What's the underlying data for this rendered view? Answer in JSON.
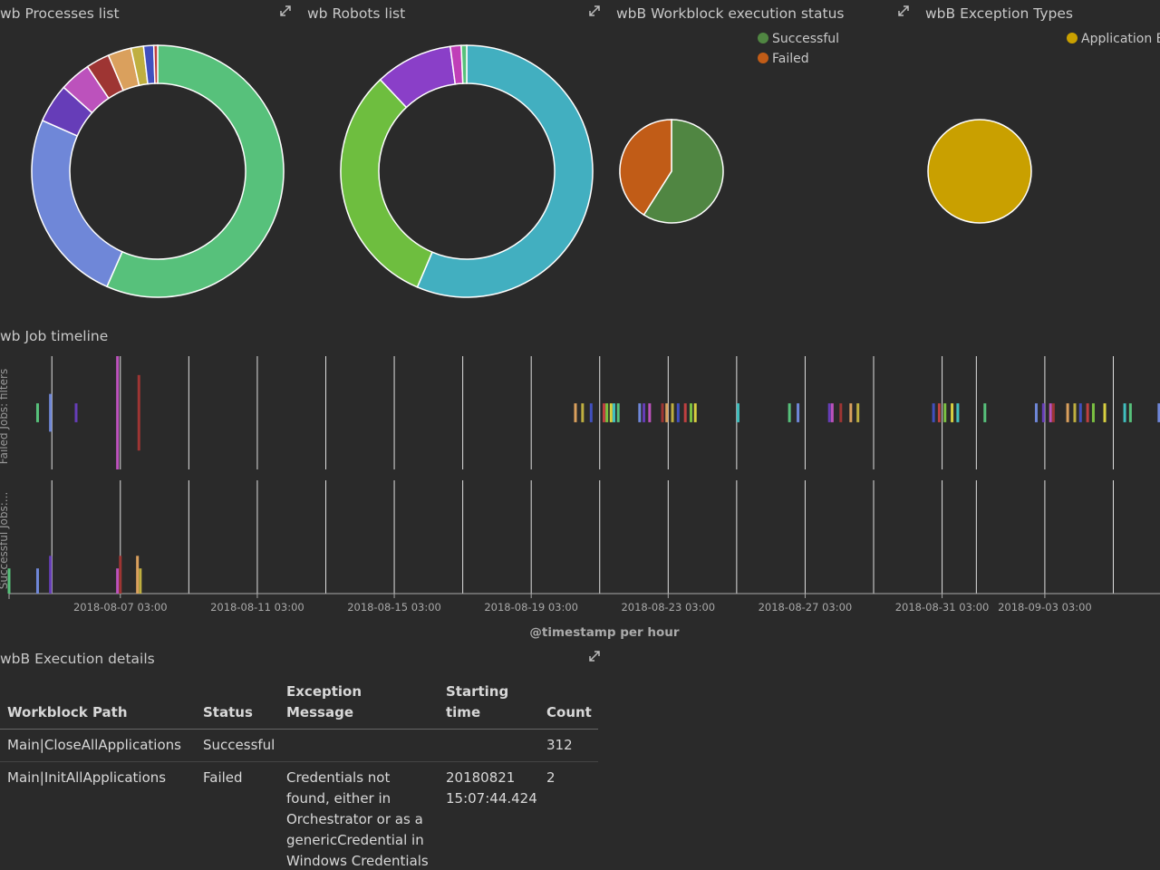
{
  "panels": {
    "processes": {
      "title": "wb Processes list",
      "chart": {
        "type": "donut",
        "values": [
          56.6,
          25,
          5,
          4,
          3,
          3,
          1.6,
          1.3,
          0.5
        ],
        "colors": [
          "#57c17b",
          "#6f87d8",
          "#663db8",
          "#bc52bc",
          "#9e3533",
          "#daa05d",
          "#bfaf40",
          "#4050bf",
          "#bf4040"
        ]
      }
    },
    "robots": {
      "title": "wb Robots list",
      "chart": {
        "type": "donut",
        "values": [
          56.7,
          31.7,
          10,
          1.4,
          0.7
        ],
        "colors": [
          "#42afc0",
          "#6ebe3f",
          "#8a3fc8",
          "#c03fb8",
          "#57c17b"
        ]
      }
    },
    "status": {
      "title": "wbB Workblock execution status",
      "chart": {
        "type": "pie",
        "categories": [
          "Successful",
          "Failed"
        ],
        "values": [
          59,
          41
        ],
        "colors": [
          "#508642",
          "#c15c17"
        ]
      }
    },
    "exceptions": {
      "title": "wbB Exception Types",
      "chart": {
        "type": "pie",
        "categories": [
          "Application E"
        ],
        "values": [
          100
        ],
        "colors": [
          "#c9a000"
        ]
      }
    },
    "timeline": {
      "title": "wb Job timeline",
      "chart": {
        "type": "timeline",
        "xlabel": "@timestamp per hour",
        "xlim": [
          "2018-08-03 21:00",
          "2018-09-06 13:00"
        ],
        "xticks": [
          "2018-08-07 03:00",
          "2018-08-11 03:00",
          "2018-08-15 03:00",
          "2018-08-19 03:00",
          "2018-08-23 03:00",
          "2018-08-27 03:00",
          "2018-08-31 03:00",
          "2018-09-03 03:00"
        ],
        "gridlines": [
          "2018-08-05 03:00",
          "2018-08-07 03:00",
          "2018-08-09 03:00",
          "2018-08-11 03:00",
          "2018-08-13 03:00",
          "2018-08-15 03:00",
          "2018-08-17 03:00",
          "2018-08-19 03:00",
          "2018-08-21 03:00",
          "2018-08-23 03:00",
          "2018-08-25 03:00",
          "2018-08-27 03:00",
          "2018-08-29 03:00",
          "2018-08-31 03:00",
          "2018-09-01 03:00",
          "2018-09-03 03:00",
          "2018-09-05 03:00"
        ],
        "palette": [
          "#57c17b",
          "#6f87d8",
          "#663db8",
          "#bc52bc",
          "#9e3533",
          "#daa05d",
          "#bfaf40",
          "#4050bf",
          "#bf4040",
          "#7bc142",
          "#d8d040",
          "#40bfbf"
        ],
        "series": [
          {
            "name": "Failed Jobs: filters",
            "ylim": [
              0,
              6
            ],
            "x": [
              "2018-08-04 17:00",
              "2018-08-05 02:00",
              "2018-08-05 20:00",
              "2018-08-07 01:00",
              "2018-08-07 16:00",
              "2018-08-20 10:00",
              "2018-08-20 15:00",
              "2018-08-20 21:00",
              "2018-08-21 06:00",
              "2018-08-21 08:00",
              "2018-08-21 11:00",
              "2018-08-21 13:00",
              "2018-08-21 16:00",
              "2018-08-22 07:00",
              "2018-08-22 10:00",
              "2018-08-22 14:00",
              "2018-08-22 23:00",
              "2018-08-23 02:00",
              "2018-08-23 06:00",
              "2018-08-23 10:00",
              "2018-08-23 15:00",
              "2018-08-23 19:00",
              "2018-08-23 22:00",
              "2018-08-25 04:00",
              "2018-08-26 16:00",
              "2018-08-26 22:00",
              "2018-08-27 20:00",
              "2018-08-27 22:00",
              "2018-08-28 04:00",
              "2018-08-28 11:00",
              "2018-08-28 16:00",
              "2018-08-30 21:00",
              "2018-08-31 01:00",
              "2018-08-31 05:00",
              "2018-08-31 10:00",
              "2018-08-31 14:00",
              "2018-09-01 09:00",
              "2018-09-02 21:00",
              "2018-09-03 02:00",
              "2018-09-03 07:00",
              "2018-09-03 09:00",
              "2018-09-03 19:00",
              "2018-09-04 00:00",
              "2018-09-04 04:00",
              "2018-09-04 09:00",
              "2018-09-04 13:00",
              "2018-09-04 21:00",
              "2018-09-05 11:00",
              "2018-09-05 15:00",
              "2018-09-06 11:00"
            ],
            "values": [
              1,
              2,
              1,
              6,
              4,
              1,
              1,
              1,
              1,
              1,
              1,
              1,
              1,
              1,
              1,
              1,
              1,
              1,
              1,
              1,
              1,
              1,
              1,
              1,
              1,
              1,
              1,
              1,
              1,
              1,
              1,
              1,
              1,
              1,
              1,
              1,
              1,
              1,
              1,
              1,
              1,
              1,
              1,
              1,
              1,
              1,
              1,
              1,
              1,
              1
            ]
          },
          {
            "name": "Successful Jobs:...",
            "ylim": [
              0,
              9
            ],
            "x": [
              "2018-08-03 21:00",
              "2018-08-04 17:00",
              "2018-08-05 02:00",
              "2018-08-07 01:00",
              "2018-08-07 03:00",
              "2018-08-07 15:00",
              "2018-08-07 17:00"
            ],
            "values": [
              2,
              2,
              3,
              2,
              3,
              3,
              2
            ]
          }
        ]
      }
    },
    "details": {
      "title": "wbB Execution details",
      "table": {
        "columns": [
          "Workblock Path",
          "Status",
          "Exception Message",
          "Starting time",
          "Count"
        ],
        "rows": [
          [
            "Main|CloseAllApplications",
            "Successful",
            null,
            null,
            312
          ],
          [
            "Main|InitAllApplications",
            "Failed",
            "Credentials not found, either in Orchestrator or as a genericCredential in Windows Credentials",
            "20180821 15:07:44.424",
            2
          ]
        ]
      }
    }
  }
}
